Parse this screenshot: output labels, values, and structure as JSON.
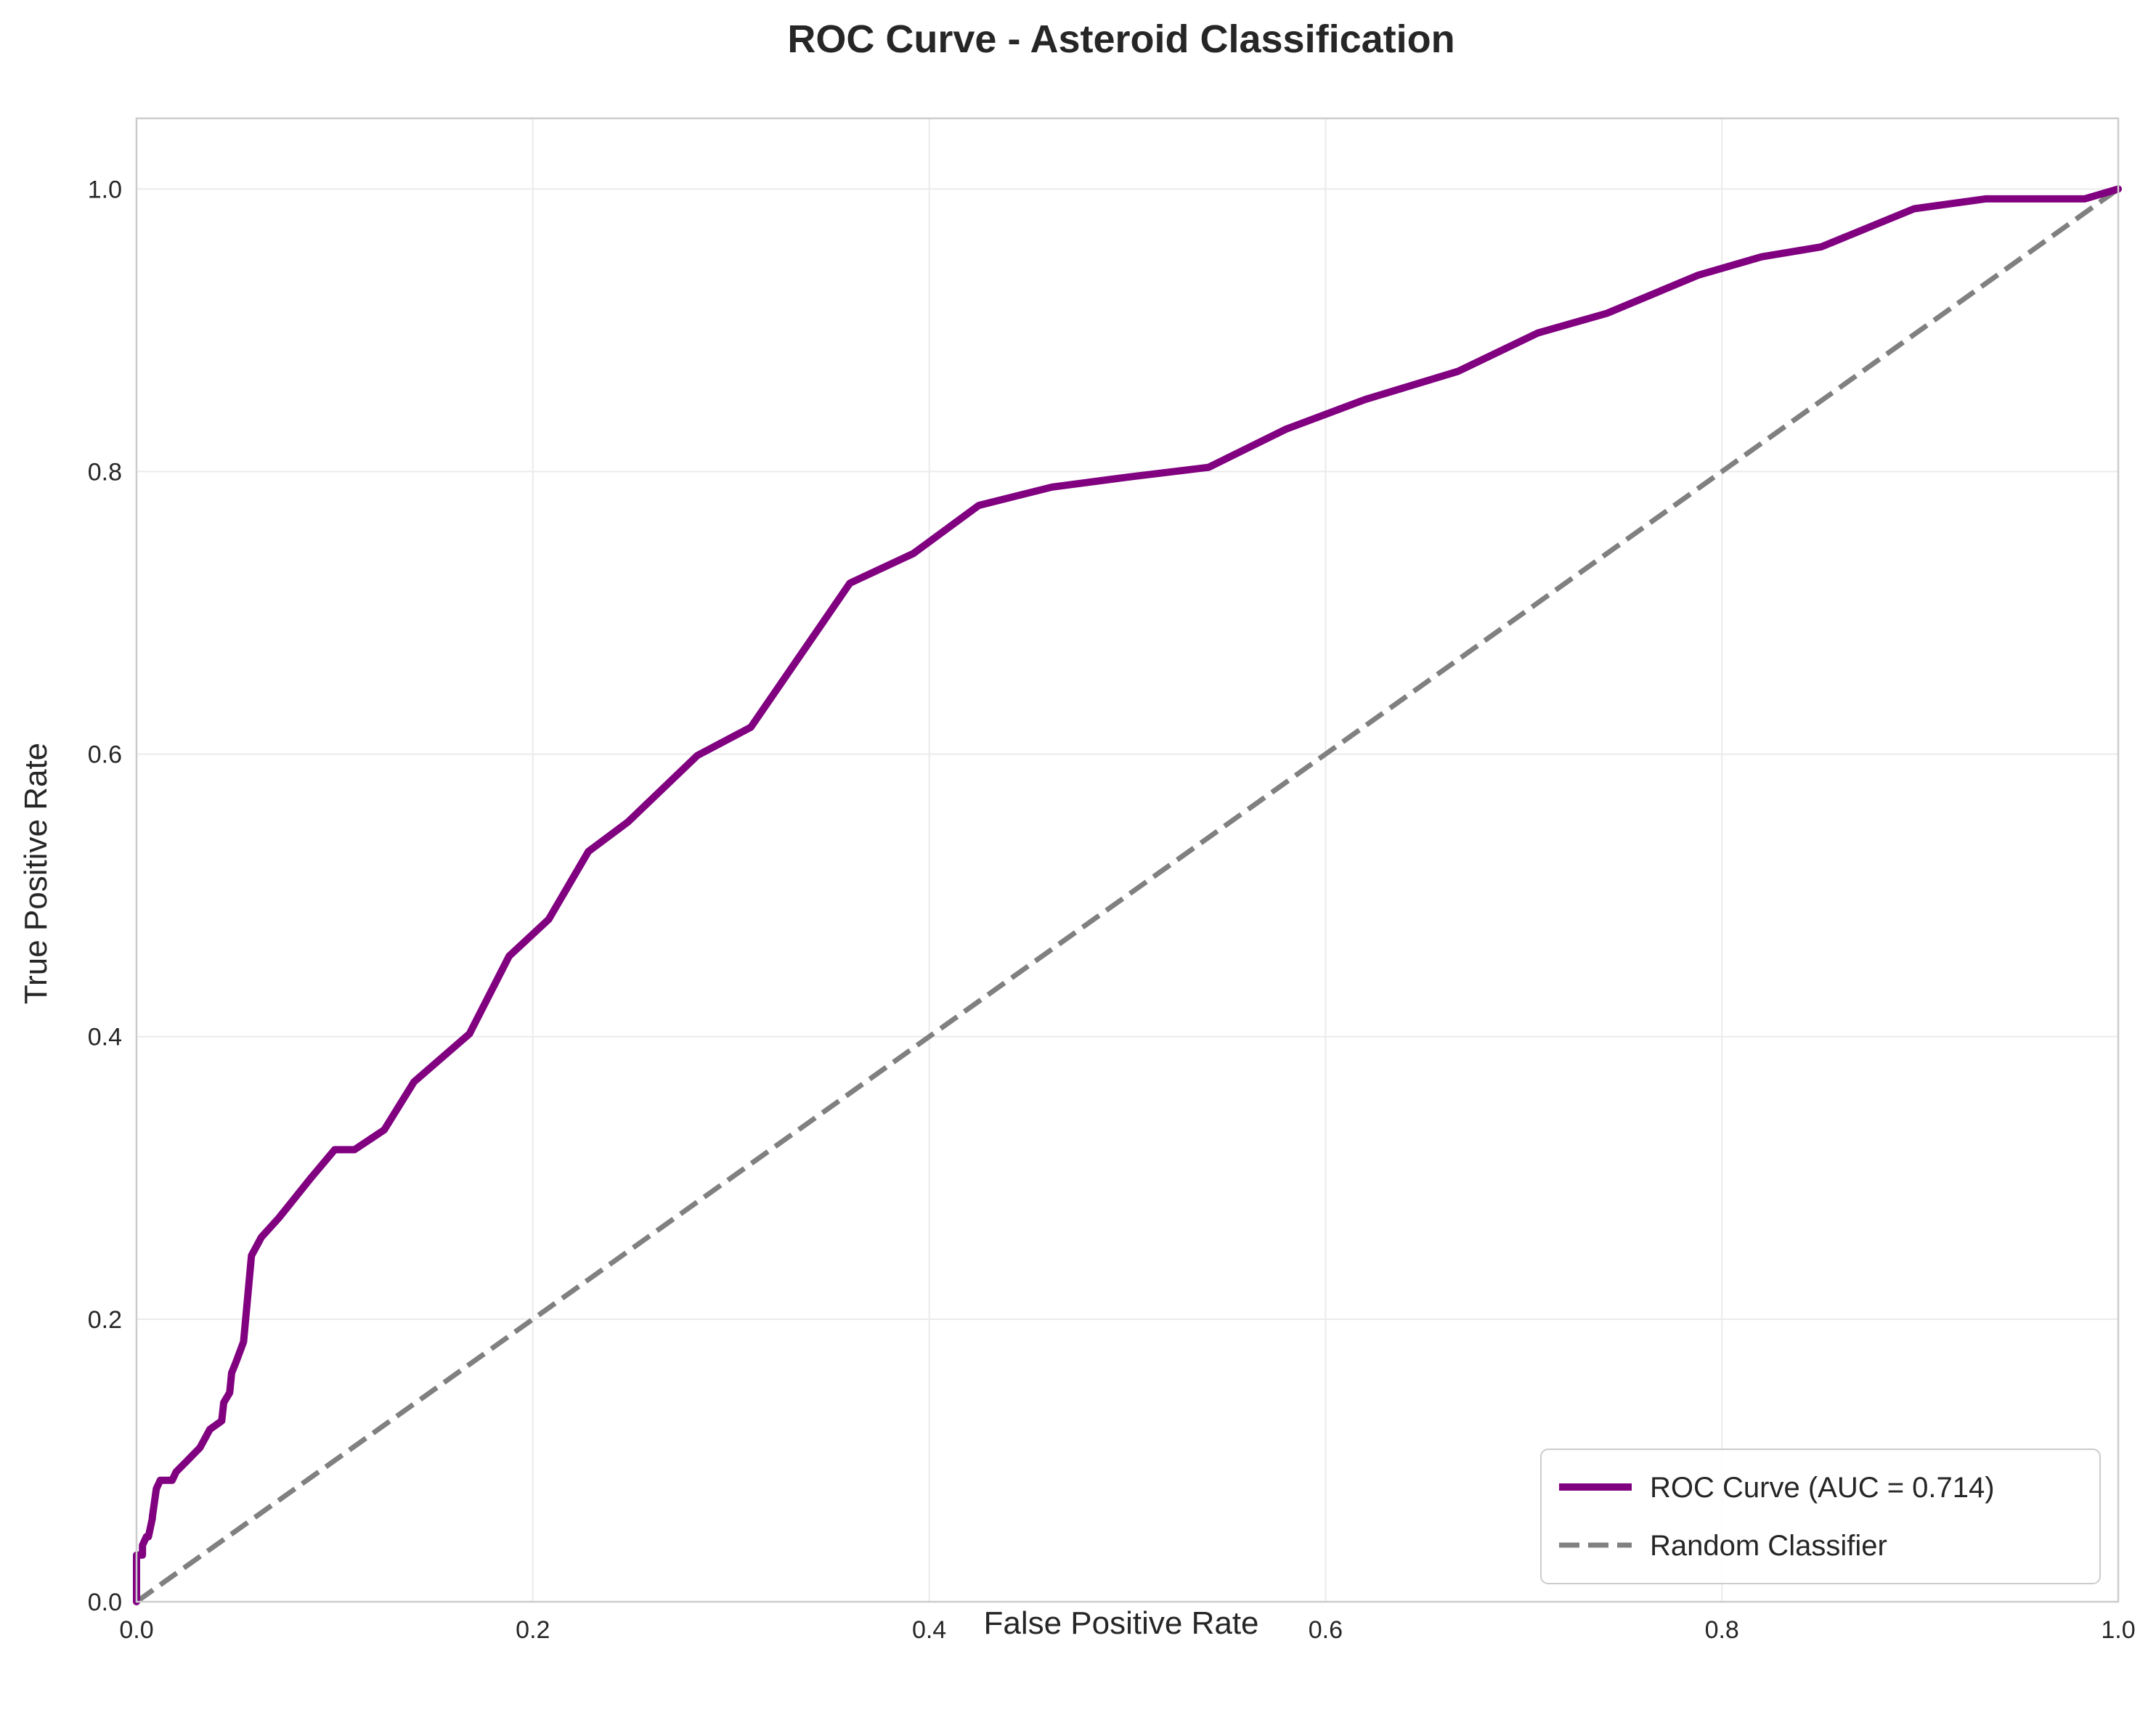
{
  "chart_data": {
    "type": "line",
    "title": "ROC Curve - Asteroid Classification",
    "xlabel": "False Positive Rate",
    "ylabel": "True Positive Rate",
    "xlim": [
      0.0,
      1.0
    ],
    "ylim": [
      0.0,
      1.05
    ],
    "xticks": [
      "0.0",
      "0.2",
      "0.4",
      "0.6",
      "0.8",
      "1.0"
    ],
    "yticks": [
      "0.0",
      "0.2",
      "0.4",
      "0.6",
      "0.8",
      "1.0"
    ],
    "grid": true,
    "legend_position": "lower right",
    "series": [
      {
        "name": "ROC Curve (AUC = 0.714)",
        "color": "#800080",
        "style": "solid",
        "x": [
          0.0,
          0.0,
          0.003,
          0.003,
          0.005,
          0.006,
          0.008,
          0.008,
          0.01,
          0.012,
          0.015,
          0.018,
          0.02,
          0.025,
          0.032,
          0.037,
          0.043,
          0.044,
          0.047,
          0.048,
          0.05,
          0.054,
          0.058,
          0.063,
          0.072,
          0.088,
          0.1,
          0.11,
          0.125,
          0.14,
          0.168,
          0.188,
          0.208,
          0.228,
          0.248,
          0.283,
          0.31,
          0.36,
          0.392,
          0.425,
          0.462,
          0.5,
          0.541,
          0.58,
          0.62,
          0.667,
          0.707,
          0.742,
          0.788,
          0.82,
          0.85,
          0.897,
          0.933,
          0.983,
          1.0
        ],
        "y": [
          0.0,
          0.033,
          0.033,
          0.04,
          0.046,
          0.046,
          0.059,
          0.06,
          0.08,
          0.086,
          0.086,
          0.086,
          0.092,
          0.099,
          0.109,
          0.122,
          0.128,
          0.141,
          0.148,
          0.162,
          0.169,
          0.184,
          0.245,
          0.258,
          0.272,
          0.3,
          0.32,
          0.32,
          0.334,
          0.368,
          0.402,
          0.457,
          0.483,
          0.531,
          0.552,
          0.599,
          0.619,
          0.721,
          0.742,
          0.776,
          0.789,
          0.796,
          0.803,
          0.83,
          0.851,
          0.871,
          0.898,
          0.912,
          0.939,
          0.952,
          0.959,
          0.986,
          0.993,
          0.993,
          1.0
        ]
      },
      {
        "name": "Random Classifier",
        "color": "#808080",
        "style": "dashed",
        "x": [
          0.0,
          1.0
        ],
        "y": [
          0.0,
          1.0
        ]
      }
    ]
  }
}
